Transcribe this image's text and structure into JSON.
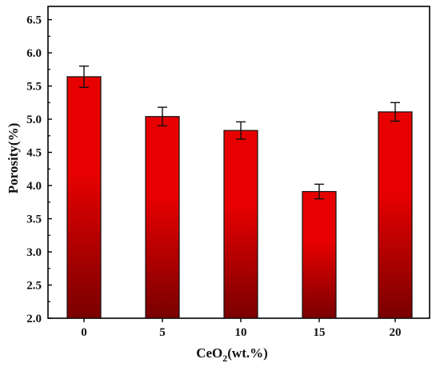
{
  "chart_data": {
    "type": "bar",
    "categories": [
      "0",
      "5",
      "10",
      "15",
      "20"
    ],
    "values": [
      5.64,
      5.04,
      4.83,
      3.91,
      5.11
    ],
    "errors": [
      0.16,
      0.14,
      0.13,
      0.11,
      0.14
    ],
    "ylim": [
      2.0,
      6.7
    ],
    "yticks": [
      "2.0",
      "2.5",
      "3.0",
      "3.5",
      "4.0",
      "4.5",
      "5.0",
      "5.5",
      "6.0",
      "6.5"
    ],
    "ylabel": "Porosity(%)",
    "xlabel": {
      "prefix": "CeO",
      "subscript": "2",
      "suffix": "(wt.%)"
    },
    "bar_color": "#e60000",
    "bar_dark_color": "#7a0000",
    "grid": false
  }
}
